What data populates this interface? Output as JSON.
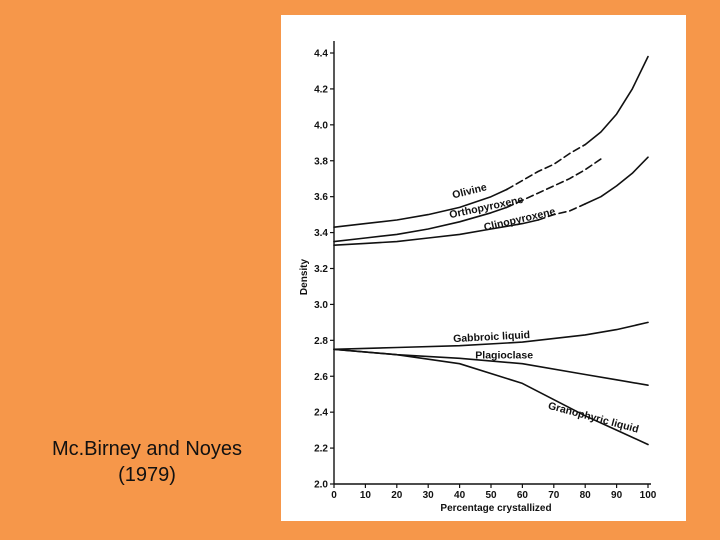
{
  "caption": {
    "line1": "Mc.Birney and Noyes",
    "line2": "(1979)"
  },
  "colors": {
    "background": "#F6974A",
    "panel": "#FFFFFF",
    "ink": "#111111"
  },
  "chart_data": {
    "type": "line",
    "title": "",
    "xlabel": "Percentage crystallized",
    "ylabel": "Density",
    "xlim": [
      0,
      100
    ],
    "ylim": [
      2.0,
      4.4
    ],
    "x_ticks": [
      0,
      10,
      20,
      30,
      40,
      50,
      60,
      70,
      80,
      90,
      100
    ],
    "y_ticks": [
      2.0,
      2.2,
      2.4,
      2.6,
      2.8,
      3.0,
      3.2,
      3.4,
      3.6,
      3.8,
      4.0,
      4.2,
      4.4
    ],
    "y_tick_labels": [
      "2.0",
      "2.2",
      "2.4",
      "2.6",
      "2.8",
      "3.0",
      "3.2",
      "3.4",
      "3.6",
      "3.8",
      "4.0",
      "4.2",
      "4.4"
    ],
    "grid": false,
    "series": [
      {
        "name": "Olivine",
        "segments": [
          {
            "style": "solid",
            "points": [
              [
                0,
                3.43
              ],
              [
                10,
                3.45
              ],
              [
                20,
                3.47
              ],
              [
                30,
                3.5
              ],
              [
                40,
                3.54
              ],
              [
                50,
                3.6
              ],
              [
                55,
                3.64
              ]
            ]
          },
          {
            "style": "dashed",
            "points": [
              [
                55,
                3.64
              ],
              [
                60,
                3.69
              ],
              [
                65,
                3.74
              ],
              [
                70,
                3.78
              ],
              [
                75,
                3.84
              ],
              [
                80,
                3.89
              ]
            ]
          },
          {
            "style": "solid",
            "points": [
              [
                80,
                3.89
              ],
              [
                85,
                3.96
              ],
              [
                90,
                4.06
              ],
              [
                95,
                4.2
              ],
              [
                100,
                4.38
              ]
            ]
          }
        ]
      },
      {
        "name": "Orthopyroxene",
        "segments": [
          {
            "style": "solid",
            "points": [
              [
                0,
                3.35
              ],
              [
                10,
                3.37
              ],
              [
                20,
                3.39
              ],
              [
                30,
                3.42
              ],
              [
                40,
                3.46
              ],
              [
                50,
                3.51
              ],
              [
                55,
                3.54
              ]
            ]
          },
          {
            "style": "dashed",
            "points": [
              [
                55,
                3.54
              ],
              [
                60,
                3.58
              ],
              [
                65,
                3.62
              ],
              [
                70,
                3.66
              ],
              [
                75,
                3.7
              ],
              [
                80,
                3.75
              ],
              [
                85,
                3.81
              ]
            ]
          }
        ]
      },
      {
        "name": "Clinopyroxene",
        "segments": [
          {
            "style": "solid",
            "points": [
              [
                0,
                3.33
              ],
              [
                10,
                3.34
              ],
              [
                20,
                3.35
              ],
              [
                30,
                3.37
              ],
              [
                40,
                3.39
              ],
              [
                50,
                3.42
              ],
              [
                60,
                3.45
              ],
              [
                65,
                3.47
              ]
            ]
          },
          {
            "style": "dashed",
            "points": [
              [
                65,
                3.47
              ],
              [
                70,
                3.5
              ],
              [
                75,
                3.52
              ],
              [
                80,
                3.56
              ]
            ]
          },
          {
            "style": "solid",
            "points": [
              [
                80,
                3.56
              ],
              [
                85,
                3.6
              ],
              [
                90,
                3.66
              ],
              [
                95,
                3.73
              ],
              [
                100,
                3.82
              ]
            ]
          }
        ]
      },
      {
        "name": "Gabbroic liquid",
        "segments": [
          {
            "style": "solid",
            "points": [
              [
                0,
                2.75
              ],
              [
                20,
                2.76
              ],
              [
                40,
                2.77
              ],
              [
                60,
                2.79
              ],
              [
                80,
                2.83
              ],
              [
                90,
                2.86
              ],
              [
                100,
                2.9
              ]
            ]
          }
        ]
      },
      {
        "name": "Plagioclase",
        "segments": [
          {
            "style": "solid",
            "points": [
              [
                0,
                2.75
              ],
              [
                20,
                2.72
              ],
              [
                40,
                2.7
              ],
              [
                60,
                2.67
              ],
              [
                80,
                2.61
              ],
              [
                90,
                2.58
              ],
              [
                100,
                2.55
              ]
            ]
          }
        ]
      },
      {
        "name": "Granophyric liquid",
        "segments": [
          {
            "style": "solid",
            "points": [
              [
                0,
                2.75
              ],
              [
                20,
                2.72
              ],
              [
                40,
                2.67
              ],
              [
                60,
                2.56
              ],
              [
                80,
                2.38
              ],
              [
                90,
                2.3
              ],
              [
                100,
                2.22
              ]
            ]
          }
        ]
      }
    ],
    "annotations": [
      {
        "text": "Olivine",
        "x": 38,
        "y": 3.59,
        "angle": -14
      },
      {
        "text": "Orthopyroxene",
        "x": 37,
        "y": 3.48,
        "angle": -12
      },
      {
        "text": "Clinopyroxene",
        "x": 48,
        "y": 3.41,
        "angle": -13
      },
      {
        "text": "Gabbroic liquid",
        "x": 38,
        "y": 2.79,
        "angle": -3
      },
      {
        "text": "Plagioclase",
        "x": 45,
        "y": 2.7,
        "angle": 0
      },
      {
        "text": "Granophyric liquid",
        "x": 68,
        "y": 2.42,
        "angle": 15
      }
    ]
  }
}
